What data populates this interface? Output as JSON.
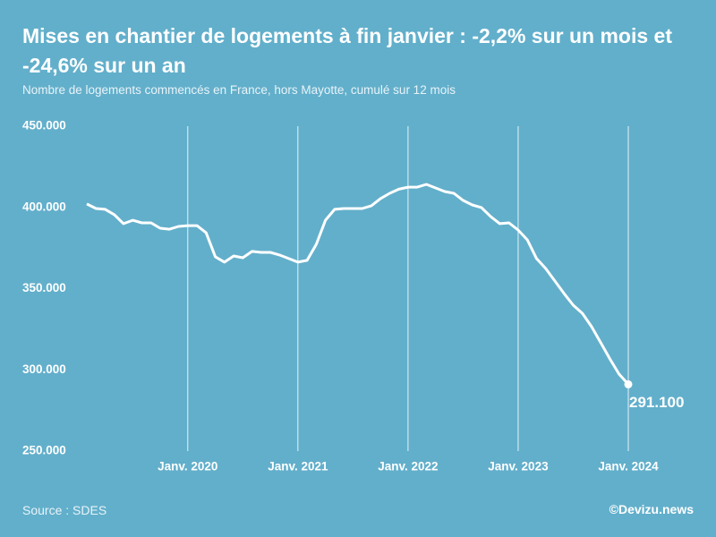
{
  "chart_data": {
    "type": "line",
    "title": "Mises en chantier de logements à fin janvier : -2,2% sur un mois et -24,6% sur un an",
    "subtitle": "Nombre de logements commencés en France, hors Mayotte, cumulé sur 12 mois",
    "source": "Source : SDES",
    "credit": "©Devizu.news",
    "categories": [
      null,
      null,
      null,
      null,
      null,
      null,
      null,
      null,
      null,
      null,
      null,
      "Janv. 2020",
      null,
      null,
      null,
      null,
      null,
      null,
      null,
      null,
      null,
      null,
      null,
      "Janv. 2021",
      null,
      null,
      null,
      null,
      null,
      null,
      null,
      null,
      null,
      null,
      null,
      "Janv. 2022",
      null,
      null,
      null,
      null,
      null,
      null,
      null,
      null,
      null,
      null,
      null,
      "Janv. 2023",
      null,
      null,
      null,
      null,
      null,
      null,
      null,
      null,
      null,
      null,
      null,
      "Janv. 2024"
    ],
    "values": [
      402100,
      399300,
      398800,
      395500,
      390000,
      392100,
      390500,
      390500,
      387200,
      386600,
      388300,
      388800,
      388800,
      384400,
      369600,
      366300,
      370100,
      369000,
      372900,
      372300,
      372300,
      370700,
      368500,
      366300,
      367400,
      377300,
      392100,
      398800,
      399300,
      399300,
      399300,
      401000,
      405400,
      408700,
      411200,
      412500,
      412500,
      414200,
      412000,
      409800,
      408700,
      404300,
      401500,
      399900,
      394400,
      390000,
      390500,
      386100,
      380000,
      368500,
      362400,
      354700,
      347000,
      339800,
      334800,
      326600,
      316700,
      306700,
      297400,
      291100
    ],
    "value_labels": [
      null,
      null,
      null,
      null,
      null,
      null,
      null,
      null,
      null,
      null,
      null,
      null,
      null,
      null,
      null,
      null,
      null,
      null,
      null,
      null,
      null,
      null,
      null,
      null,
      null,
      null,
      null,
      null,
      null,
      null,
      null,
      null,
      null,
      null,
      null,
      null,
      null,
      null,
      null,
      null,
      null,
      null,
      null,
      null,
      null,
      null,
      null,
      null,
      null,
      null,
      null,
      null,
      null,
      null,
      null,
      null,
      null,
      null,
      null,
      "291.100"
    ],
    "color": "#ffffff",
    "ylim": [
      250000,
      450000
    ],
    "yticks": [
      {
        "value": 250000,
        "label": "250.000"
      },
      {
        "value": 300000,
        "label": "300.000"
      },
      {
        "value": 350000,
        "label": "350.000"
      },
      {
        "value": 400000,
        "label": "400.000"
      },
      {
        "value": 450000,
        "label": "450.000"
      }
    ],
    "grid": true
  }
}
